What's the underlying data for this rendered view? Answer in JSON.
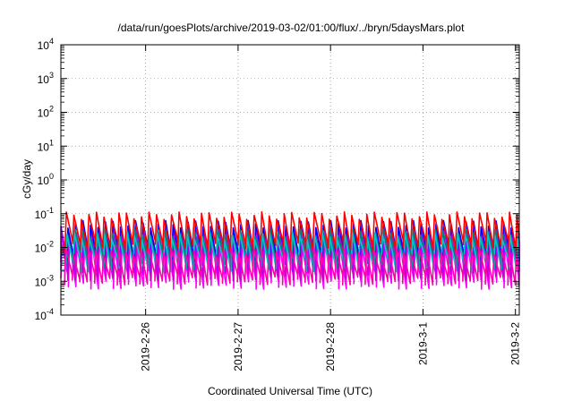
{
  "chart_data": {
    "type": "line",
    "title": "/data/run/goesPlots/archive/2019-03-02/01:00/flux/../bryn/5daysMars.plot",
    "xlabel": "Coordinated Universal Time (UTC)",
    "ylabel": "cGy/day",
    "yscale": "log",
    "ylim": [
      0.0001,
      10000
    ],
    "xlim": [
      "2019-02-25T02:00",
      "2019-03-02T01:00"
    ],
    "grid": true,
    "legend": "none",
    "y_ticks": [
      {
        "exp": "-4",
        "value": 0.0001
      },
      {
        "exp": "-3",
        "value": 0.001
      },
      {
        "exp": "-2",
        "value": 0.01
      },
      {
        "exp": "-1",
        "value": 0.1
      },
      {
        "exp": "0",
        "value": 1
      },
      {
        "exp": "1",
        "value": 10
      },
      {
        "exp": "2",
        "value": 100
      },
      {
        "exp": "3",
        "value": 1000
      },
      {
        "exp": "4",
        "value": 10000
      }
    ],
    "y_tick_base": "10",
    "x_ticks": [
      {
        "label": "2019-2-26",
        "date": "2019-02-26T00:00"
      },
      {
        "label": "2019-2-27",
        "date": "2019-02-27T00:00"
      },
      {
        "label": "2019-2-28",
        "date": "2019-02-28T00:00"
      },
      {
        "label": "2019-3-1",
        "date": "2019-03-01T00:00"
      },
      {
        "label": "2019-3-2",
        "date": "2019-03-02T00:00"
      }
    ],
    "cycle_period_hours": 1.95,
    "series": [
      {
        "color": "#ff00ff",
        "peak": 0.012,
        "trough": 0.0009
      },
      {
        "color": "#cc00cc",
        "peak": 0.02,
        "trough": 0.0016
      },
      {
        "color": "#aa00ff",
        "peak": 0.035,
        "trough": 0.003
      },
      {
        "color": "#0000ff",
        "peak": 0.05,
        "trough": 0.006
      },
      {
        "color": "#008080",
        "peak": 0.028,
        "trough": 0.004
      },
      {
        "color": "#00c8c8",
        "peak": 0.022,
        "trough": 0.003
      },
      {
        "color": "#ff0000",
        "peak": 0.09,
        "trough": 0.012
      },
      {
        "color": "#ff00aa",
        "peak": 0.008,
        "trough": 0.0012
      }
    ]
  }
}
